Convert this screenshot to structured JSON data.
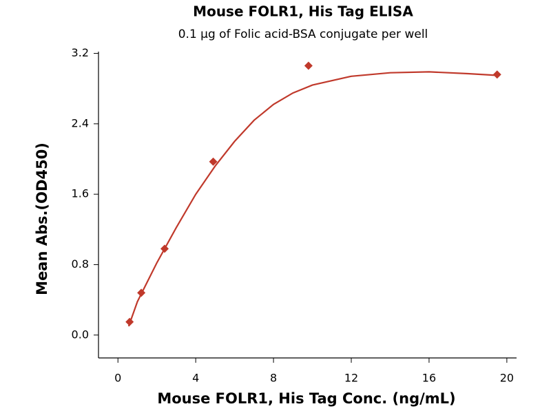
{
  "chart_data": {
    "type": "scatter",
    "title": "Mouse FOLR1, His Tag ELISA",
    "subtitle": "0.1 μg of Folic acid-BSA conjugate per well",
    "x_label": "Mouse FOLR1, His Tag Conc. (ng/mL)",
    "y_label": "Mean Abs.(OD450)",
    "xlim": [
      -1,
      20.5
    ],
    "ylim": [
      -0.26,
      3.22
    ],
    "xticks": [
      0,
      4,
      8,
      12,
      16,
      20
    ],
    "yticks": [
      {
        "value": 0,
        "label": "0.0"
      },
      {
        "value": 0.8,
        "label": "0.8"
      },
      {
        "value": 1.6,
        "label": "1.6"
      },
      {
        "value": 2.4,
        "label": "2.4"
      },
      {
        "value": 3.2,
        "label": "3.2"
      }
    ],
    "points": {
      "color": "#c0392b",
      "x": [
        0.6,
        1.2,
        2.4,
        4.9,
        9.8,
        19.5
      ],
      "y": [
        0.15,
        0.48,
        0.98,
        1.97,
        3.06,
        2.96
      ]
    },
    "fit": {
      "color": "#c0392b",
      "x": [
        0.55,
        1,
        2,
        3,
        4,
        5,
        6,
        7,
        8,
        9,
        10,
        12,
        14,
        16,
        18,
        19.5
      ],
      "y": [
        0.1,
        0.38,
        0.82,
        1.22,
        1.6,
        1.92,
        2.2,
        2.44,
        2.62,
        2.75,
        2.84,
        2.94,
        2.98,
        2.99,
        2.97,
        2.95
      ]
    }
  }
}
